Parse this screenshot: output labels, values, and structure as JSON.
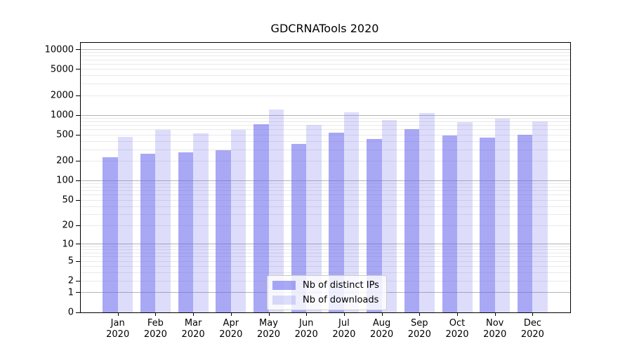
{
  "title": "GDCRNATools 2020",
  "legend": {
    "items": [
      {
        "label": "Nb of distinct IPs",
        "slug": "distinct-ips",
        "color": "rgba(99,99,237,0.56)"
      },
      {
        "label": "Nb of downloads",
        "slug": "downloads",
        "color": "rgba(99,99,237,0.22)"
      }
    ]
  },
  "axes": {
    "y_ticks": [
      {
        "value": 0,
        "label": "0"
      },
      {
        "value": 1,
        "label": "1"
      },
      {
        "value": 2,
        "label": "2"
      },
      {
        "value": 5,
        "label": "5"
      },
      {
        "value": 10,
        "label": "10"
      },
      {
        "value": 20,
        "label": "20"
      },
      {
        "value": 50,
        "label": "50"
      },
      {
        "value": 100,
        "label": "100"
      },
      {
        "value": 200,
        "label": "200"
      },
      {
        "value": 500,
        "label": "500"
      },
      {
        "value": 1000,
        "label": "1000"
      },
      {
        "value": 2000,
        "label": "2000"
      },
      {
        "value": 5000,
        "label": "5000"
      },
      {
        "value": 10000,
        "label": "10000"
      }
    ],
    "x_ticks": [
      {
        "month": "Jan",
        "year": "2020"
      },
      {
        "month": "Feb",
        "year": "2020"
      },
      {
        "month": "Mar",
        "year": "2020"
      },
      {
        "month": "Apr",
        "year": "2020"
      },
      {
        "month": "May",
        "year": "2020"
      },
      {
        "month": "Jun",
        "year": "2020"
      },
      {
        "month": "Jul",
        "year": "2020"
      },
      {
        "month": "Aug",
        "year": "2020"
      },
      {
        "month": "Sep",
        "year": "2020"
      },
      {
        "month": "Oct",
        "year": "2020"
      },
      {
        "month": "Nov",
        "year": "2020"
      },
      {
        "month": "Dec",
        "year": "2020"
      }
    ]
  },
  "chart_data": {
    "type": "bar",
    "title": "GDCRNATools 2020",
    "categories": [
      "Jan 2020",
      "Feb 2020",
      "Mar 2020",
      "Apr 2020",
      "May 2020",
      "Jun 2020",
      "Jul 2020",
      "Aug 2020",
      "Sep 2020",
      "Oct 2020",
      "Nov 2020",
      "Dec 2020"
    ],
    "series": [
      {
        "name": "Nb of distinct IPs",
        "slug": "distinct-ips",
        "color": "rgba(99,99,237,0.56)",
        "values": [
          230,
          260,
          270,
          290,
          730,
          370,
          540,
          430,
          620,
          490,
          460,
          510
        ]
      },
      {
        "name": "Nb of downloads",
        "slug": "downloads",
        "color": "rgba(99,99,237,0.22)",
        "values": [
          470,
          600,
          530,
          600,
          1230,
          710,
          1100,
          850,
          1070,
          790,
          880,
          810
        ]
      }
    ],
    "xlabel": "",
    "ylabel": "",
    "yscale": "log-like (position proportional to log10(value+1))",
    "ylim": [
      0,
      10000
    ],
    "major_grid_values": [
      1,
      10,
      100,
      1000,
      10000
    ],
    "grid": true,
    "legend_position": "inside plot, lower center"
  },
  "colors": {
    "grid_major": "#b4b4b4",
    "grid_minor": "#e9e9e9",
    "spine": "#000000",
    "background": "#ffffff",
    "bar_base": "#6363ed"
  }
}
